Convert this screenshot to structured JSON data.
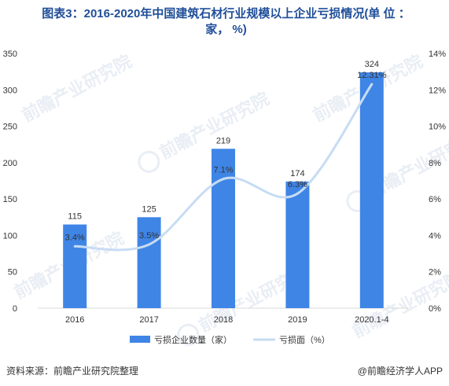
{
  "title_line1": "图表3：2016-2020年中国建筑石材行业规模以上企业亏损情况(单 位 ：",
  "title_line2": "家， %)",
  "footer": {
    "source": "资料来源：前瞻产业研究院整理",
    "brand": "@前瞻经济学人APP"
  },
  "watermark": {
    "text": "前瞻产业研究院",
    "color": "#e9eef5"
  },
  "colors": {
    "bar": "#3f85e6",
    "line": "#c7dcf3",
    "axis": "#d9d9d9",
    "text": "#333333",
    "title": "#1f4e99"
  },
  "chart_data": {
    "type": "bar",
    "categories": [
      "2016",
      "2017",
      "2018",
      "2019",
      "2020.1-4"
    ],
    "series": [
      {
        "name": "亏损企业数量（家）",
        "type": "bar",
        "axis": "left",
        "values": [
          115,
          125,
          219,
          174,
          324
        ],
        "labels": [
          "115",
          "125",
          "219",
          "174",
          "324"
        ]
      },
      {
        "name": "亏损面（%）",
        "type": "line",
        "axis": "right",
        "values": [
          3.4,
          3.5,
          7.1,
          6.3,
          12.31
        ],
        "labels": [
          "3.4%",
          "3.5%",
          "7.1%",
          "6.3%",
          "12.31%"
        ]
      }
    ],
    "y_left": {
      "min": 0,
      "max": 350,
      "ticks": [
        "0",
        "50",
        "100",
        "150",
        "200",
        "250",
        "300",
        "350"
      ]
    },
    "y_right": {
      "min": 0,
      "max": 14,
      "ticks": [
        "0%",
        "2%",
        "4%",
        "6%",
        "8%",
        "10%",
        "12%",
        "14%"
      ]
    },
    "legend_position": "bottom",
    "grid": false
  }
}
